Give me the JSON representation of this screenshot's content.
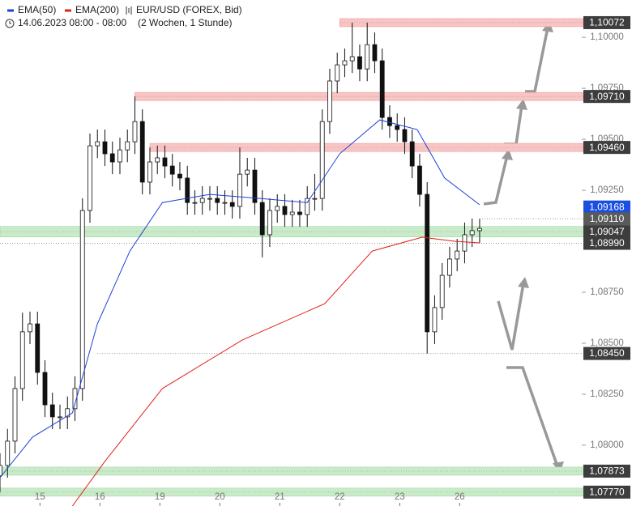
{
  "chart_data": {
    "type": "candlestick",
    "symbol": "EUR/USD (FOREX, Bid)",
    "period": "14.06.2023 08:00 - 08:00",
    "span": "(2 Wochen, 1 Stunde)",
    "x": [
      0,
      3,
      6,
      9,
      12,
      15,
      18,
      21,
      24,
      27,
      30,
      33,
      36,
      39,
      42,
      45,
      48,
      51,
      54,
      57,
      60,
      63,
      66,
      69,
      72,
      75,
      78,
      81,
      84,
      87,
      90,
      93,
      96,
      99,
      102,
      105,
      108,
      111,
      114,
      117,
      120,
      123,
      126,
      129,
      132,
      135,
      138,
      141,
      144,
      147,
      150,
      153,
      156,
      159,
      162,
      165,
      168,
      171,
      174,
      177,
      180,
      183,
      186,
      189,
      192
    ],
    "open": [
      1.0785,
      1.07901,
      1.0802,
      1.08278,
      1.08556,
      1.08595,
      1.08357,
      1.08198,
      1.08139,
      1.08139,
      1.08179,
      1.08278,
      1.09151,
      1.09468,
      1.09488,
      1.09429,
      1.09389,
      1.09448,
      1.09488,
      1.09587,
      1.0929,
      1.09389,
      1.09409,
      1.09369,
      1.09329,
      1.0931,
      1.0919,
      1.0919,
      1.0921,
      1.0921,
      1.0919,
      1.0919,
      1.09171,
      1.09329,
      1.09349,
      1.0919,
      1.09032,
      1.09151,
      1.09171,
      1.09131,
      1.09143,
      1.09131,
      1.0921,
      1.0921,
      1.09587,
      1.09786,
      1.09865,
      1.09885,
      1.09905,
      1.09845,
      1.09964,
      1.09885,
      1.09607,
      1.09567,
      1.09548,
      1.09488,
      1.09369,
      1.0923,
      1.08556,
      1.08675,
      1.08833,
      1.08913,
      1.08952,
      1.09032,
      1.09052
    ],
    "high": [
      1.07961,
      1.0808,
      1.08338,
      1.0865,
      1.08655,
      1.08655,
      1.08417,
      1.08258,
      1.08199,
      1.08239,
      1.08338,
      1.09211,
      1.09528,
      1.09548,
      1.09548,
      1.09489,
      1.09508,
      1.09548,
      1.0971,
      1.09647,
      1.0946,
      1.09469,
      1.09469,
      1.09429,
      1.09389,
      1.0937,
      1.0925,
      1.0927,
      1.0927,
      1.0927,
      1.0925,
      1.0925,
      1.0946,
      1.09409,
      1.09409,
      1.0925,
      1.09211,
      1.09231,
      1.09231,
      1.09203,
      1.09203,
      1.0927,
      1.0933,
      1.09647,
      1.09846,
      1.09925,
      1.09945,
      1.10072,
      1.09965,
      1.10072,
      1.10024,
      1.09945,
      1.09667,
      1.09627,
      1.09608,
      1.09548,
      1.09429,
      1.0929,
      1.08735,
      1.08893,
      1.08973,
      1.09012,
      1.09092,
      1.09112,
      1.0911
    ],
    "low": [
      1.0777,
      1.07841,
      1.0796,
      1.08218,
      1.08496,
      1.08297,
      1.08138,
      1.08079,
      1.08079,
      1.08079,
      1.08119,
      1.08218,
      1.09091,
      1.09408,
      1.09369,
      1.09329,
      1.09329,
      1.09388,
      1.09428,
      1.0923,
      1.0923,
      1.09329,
      1.09309,
      1.09269,
      1.0925,
      1.0913,
      1.0913,
      1.0913,
      1.0915,
      1.0913,
      1.0913,
      1.09111,
      1.09111,
      1.09269,
      1.0913,
      1.08921,
      1.08972,
      1.09091,
      1.09071,
      1.09071,
      1.09071,
      1.09071,
      1.0915,
      1.0915,
      1.09527,
      1.09726,
      1.09805,
      1.09825,
      1.09785,
      1.09785,
      1.09825,
      1.09547,
      1.09507,
      1.09488,
      1.09428,
      1.09309,
      1.0917,
      1.0845,
      1.08496,
      1.08615,
      1.08773,
      1.08853,
      1.08892,
      1.08972,
      1.08992
    ],
    "close": [
      1.07901,
      1.0802,
      1.08278,
      1.08556,
      1.08595,
      1.08357,
      1.08198,
      1.08139,
      1.08139,
      1.08179,
      1.08278,
      1.09151,
      1.09468,
      1.09488,
      1.09429,
      1.09389,
      1.09448,
      1.09488,
      1.09587,
      1.0929,
      1.09389,
      1.09409,
      1.09369,
      1.09329,
      1.0931,
      1.0919,
      1.0919,
      1.0921,
      1.0921,
      1.0919,
      1.0919,
      1.09171,
      1.09329,
      1.09349,
      1.0919,
      1.09032,
      1.09151,
      1.09171,
      1.09131,
      1.09143,
      1.09131,
      1.0921,
      1.0921,
      1.09587,
      1.09786,
      1.09865,
      1.09885,
      1.09905,
      1.09845,
      1.09964,
      1.09885,
      1.09607,
      1.09567,
      1.09548,
      1.09488,
      1.09369,
      1.0923,
      1.08556,
      1.08675,
      1.08833,
      1.08913,
      1.08952,
      1.09032,
      1.09052,
      1.09063
    ],
    "series": [
      {
        "name": "EMA(50)",
        "color": "#1f3fd6",
        "x": [
          0,
          13,
          29,
          39,
          52,
          65,
          84,
          104,
          123,
          136,
          152,
          167,
          178,
          192
        ],
        "values": [
          1.07841,
          1.0804,
          1.08159,
          1.08595,
          1.08952,
          1.0919,
          1.0923,
          1.0921,
          1.0919,
          1.09429,
          1.09595,
          1.09548,
          1.0931,
          1.09179
        ]
      },
      {
        "name": "EMA(200)",
        "color": "#e0201a",
        "x": [
          29,
          42,
          65,
          97,
          130,
          149,
          169,
          182,
          192
        ],
        "values": [
          1.07702,
          1.07921,
          1.08278,
          1.08516,
          1.08694,
          1.08952,
          1.0902,
          1.09,
          1.08992
        ]
      }
    ],
    "levels": [
      {
        "value": 1.10072,
        "label": "1,10072",
        "kind": "resistance",
        "start": 136
      },
      {
        "value": 1.0971,
        "label": "1,09710",
        "kind": "resistance",
        "start": 54
      },
      {
        "value": 1.0946,
        "label": "1,09460",
        "kind": "resistance",
        "start": 60
      },
      {
        "value": 1.09168,
        "label": "1,09168",
        "kind": "price"
      },
      {
        "value": 1.0911,
        "label": "1,09110",
        "kind": "dotted",
        "start": 192
      },
      {
        "value": 1.09047,
        "label": "1,09047",
        "kind": "support",
        "start": 0
      },
      {
        "value": 1.0899,
        "label": "1,08990",
        "kind": "dotted",
        "start": 0
      },
      {
        "value": 1.0845,
        "label": "1,08450",
        "kind": "dotted",
        "start": 39
      },
      {
        "value": 1.07873,
        "label": "1,07873",
        "kind": "support",
        "start": 0
      },
      {
        "value": 1.0777,
        "label": "1,07770",
        "kind": "support",
        "start": 0
      }
    ],
    "ylim": [
      1.07702,
      1.10183
    ],
    "yticks": [
      {
        "value": 1.1,
        "label": "1,10000"
      },
      {
        "value": 1.0975,
        "label": "1,09750"
      },
      {
        "value": 1.095,
        "label": "1,09500"
      },
      {
        "value": 1.0925,
        "label": "1,09250"
      },
      {
        "value": 1.0875,
        "label": "1,08750"
      },
      {
        "value": 1.085,
        "label": "1,08500"
      },
      {
        "value": 1.0825,
        "label": "1,08250"
      },
      {
        "value": 1.08,
        "label": "1,08000"
      }
    ],
    "xlim": [
      0,
      253
    ],
    "xticks": [
      {
        "value": 16,
        "label": "15"
      },
      {
        "value": 40,
        "label": "16"
      },
      {
        "value": 64,
        "label": "19"
      },
      {
        "value": 88,
        "label": "20"
      },
      {
        "value": 112,
        "label": "21"
      },
      {
        "value": 136,
        "label": "22"
      },
      {
        "value": 160,
        "label": "23"
      },
      {
        "value": 184,
        "label": "26"
      }
    ]
  }
}
